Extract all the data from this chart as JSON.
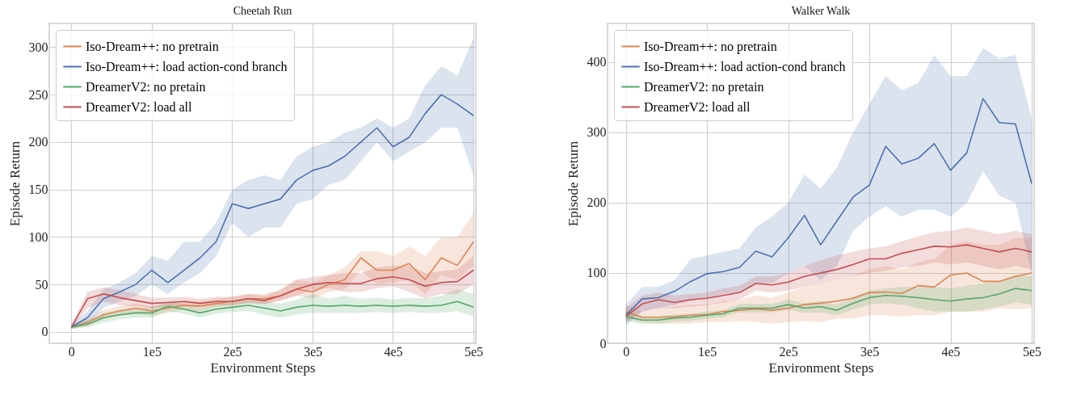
{
  "chart_data": [
    {
      "type": "line",
      "title": "Cheetah Run",
      "xlabel": "Environment Steps",
      "ylabel": "Episode Return",
      "grid": true,
      "legend": "top left",
      "x": [
        0,
        20000,
        40000,
        60000,
        80000,
        100000,
        120000,
        140000,
        160000,
        180000,
        200000,
        220000,
        240000,
        260000,
        280000,
        300000,
        320000,
        340000,
        360000,
        380000,
        400000,
        420000,
        440000,
        460000,
        480000,
        500000
      ],
      "xlim": [
        -27500,
        503000
      ],
      "ylim": [
        -12,
        325
      ],
      "xticks": [
        0,
        {
          "value": 100000,
          "label": "1e5"
        },
        {
          "value": 200000,
          "label": "2e5"
        },
        {
          "value": 300000,
          "label": "3e5"
        },
        {
          "value": 400000,
          "label": "4e5"
        },
        {
          "value": 500000,
          "label": "5e5"
        }
      ],
      "yticks": [
        0,
        50,
        100,
        150,
        200,
        250,
        300
      ],
      "series": [
        {
          "name": "Iso-Dream++: no pretrain",
          "color": "#dd8452",
          "values": [
            5,
            10,
            18,
            22,
            25,
            22,
            25,
            28,
            27,
            30,
            32,
            35,
            35,
            38,
            45,
            42,
            50,
            55,
            78,
            65,
            65,
            72,
            55,
            78,
            70,
            95
          ],
          "lower": [
            3,
            6,
            13,
            17,
            20,
            17,
            20,
            23,
            22,
            26,
            28,
            30,
            30,
            33,
            38,
            35,
            42,
            45,
            65,
            50,
            52,
            55,
            40,
            60,
            55,
            70
          ],
          "upper": [
            7,
            14,
            23,
            27,
            30,
            27,
            30,
            33,
            32,
            35,
            37,
            40,
            40,
            45,
            55,
            52,
            60,
            68,
            85,
            85,
            80,
            90,
            80,
            100,
            100,
            125
          ]
        },
        {
          "name": "Iso-Dream++: load action-cond branch",
          "color": "#4c72b0",
          "values": [
            5,
            15,
            35,
            42,
            50,
            65,
            52,
            65,
            78,
            95,
            135,
            130,
            135,
            140,
            160,
            170,
            175,
            185,
            200,
            215,
            195,
            205,
            230,
            250,
            240,
            228
          ],
          "lower": [
            3,
            8,
            25,
            32,
            38,
            50,
            40,
            52,
            62,
            80,
            115,
            100,
            110,
            110,
            135,
            140,
            155,
            160,
            180,
            200,
            180,
            190,
            200,
            215,
            215,
            165
          ],
          "upper": [
            8,
            22,
            45,
            52,
            62,
            80,
            75,
            95,
            95,
            115,
            150,
            160,
            165,
            160,
            185,
            195,
            200,
            210,
            215,
            225,
            215,
            225,
            260,
            280,
            270,
            310
          ]
        },
        {
          "name": "DreamerV2: no pretain",
          "color": "#55a868",
          "values": [
            5,
            8,
            15,
            18,
            20,
            20,
            27,
            24,
            20,
            24,
            26,
            28,
            25,
            22,
            26,
            28,
            27,
            28,
            27,
            28,
            27,
            28,
            27,
            28,
            32,
            26
          ],
          "lower": [
            3,
            5,
            10,
            13,
            15,
            15,
            22,
            19,
            15,
            19,
            21,
            22,
            18,
            15,
            18,
            20,
            20,
            20,
            20,
            21,
            20,
            21,
            20,
            20,
            22,
            16
          ],
          "upper": [
            7,
            12,
            20,
            23,
            25,
            26,
            32,
            29,
            25,
            29,
            31,
            34,
            32,
            30,
            34,
            40,
            35,
            38,
            35,
            36,
            34,
            36,
            35,
            38,
            45,
            40
          ]
        },
        {
          "name": "DreamerV2: load all",
          "color": "#c44e52",
          "values": [
            5,
            35,
            40,
            36,
            33,
            30,
            31,
            32,
            30,
            32,
            32,
            35,
            33,
            38,
            45,
            50,
            52,
            51,
            51,
            56,
            58,
            55,
            48,
            52,
            53,
            65
          ],
          "lower": [
            3,
            25,
            32,
            28,
            27,
            25,
            26,
            27,
            26,
            28,
            28,
            31,
            29,
            33,
            38,
            44,
            46,
            42,
            42,
            46,
            48,
            42,
            35,
            40,
            40,
            50
          ],
          "upper": [
            8,
            42,
            47,
            44,
            40,
            36,
            36,
            37,
            35,
            37,
            37,
            40,
            38,
            44,
            55,
            58,
            60,
            62,
            62,
            68,
            70,
            70,
            62,
            64,
            66,
            80
          ]
        }
      ]
    },
    {
      "type": "line",
      "title": "Walker Walk",
      "xlabel": "Environment Steps",
      "ylabel": "Episode Return",
      "grid": true,
      "legend": "top left",
      "x": [
        0,
        20000,
        40000,
        60000,
        80000,
        100000,
        120000,
        140000,
        160000,
        180000,
        200000,
        220000,
        240000,
        260000,
        280000,
        300000,
        320000,
        340000,
        360000,
        380000,
        400000,
        420000,
        440000,
        460000,
        480000,
        500000
      ],
      "xlim": [
        -22600,
        503000
      ],
      "ylim": [
        0,
        455
      ],
      "xticks": [
        0,
        {
          "value": 100000,
          "label": "1e5"
        },
        {
          "value": 200000,
          "label": "2e5"
        },
        {
          "value": 300000,
          "label": "3e5"
        },
        {
          "value": 400000,
          "label": "4e5"
        },
        {
          "value": 500000,
          "label": "5e5"
        }
      ],
      "yticks": [
        0,
        100,
        200,
        300,
        400
      ],
      "series": [
        {
          "name": "Iso-Dream++: no pretrain",
          "color": "#dd8452",
          "values": [
            45,
            37,
            37,
            38,
            40,
            41,
            45,
            47,
            49,
            47,
            50,
            55,
            57,
            60,
            64,
            72,
            73,
            71,
            82,
            80,
            97,
            100,
            88,
            88,
            95,
            100
          ],
          "lower": [
            35,
            30,
            28,
            28,
            28,
            30,
            30,
            32,
            30,
            28,
            30,
            32,
            30,
            35,
            35,
            40,
            40,
            38,
            40,
            40,
            45,
            45,
            45,
            50,
            48,
            50
          ],
          "upper": [
            55,
            45,
            50,
            52,
            55,
            55,
            60,
            62,
            68,
            65,
            72,
            80,
            85,
            90,
            95,
            105,
            110,
            105,
            115,
            120,
            140,
            145,
            140,
            140,
            150,
            150
          ]
        },
        {
          "name": "Iso-Dream++: load action-cond branch",
          "color": "#4c72b0",
          "values": [
            40,
            63,
            65,
            74,
            88,
            99,
            102,
            108,
            131,
            123,
            150,
            182,
            140,
            174,
            208,
            225,
            280,
            255,
            263,
            284,
            246,
            271,
            348,
            314,
            312,
            227
          ],
          "lower": [
            25,
            45,
            50,
            55,
            60,
            65,
            70,
            72,
            85,
            85,
            100,
            110,
            90,
            110,
            160,
            180,
            195,
            180,
            190,
            190,
            180,
            200,
            245,
            210,
            200,
            100
          ],
          "upper": [
            55,
            80,
            80,
            90,
            120,
            125,
            130,
            135,
            165,
            180,
            200,
            240,
            220,
            250,
            300,
            340,
            380,
            360,
            370,
            410,
            380,
            380,
            420,
            405,
            410,
            320
          ]
        },
        {
          "name": "DreamerV2: no pretain",
          "color": "#55a868",
          "values": [
            38,
            33,
            33,
            36,
            37,
            40,
            42,
            50,
            50,
            50,
            55,
            50,
            52,
            47,
            57,
            65,
            68,
            67,
            65,
            62,
            60,
            63,
            65,
            70,
            78,
            75
          ],
          "lower": [
            32,
            28,
            28,
            31,
            32,
            35,
            37,
            44,
            44,
            44,
            48,
            43,
            44,
            40,
            48,
            55,
            57,
            55,
            50,
            45,
            45,
            45,
            48,
            52,
            58,
            55
          ],
          "upper": [
            44,
            38,
            38,
            41,
            42,
            45,
            47,
            56,
            56,
            56,
            62,
            57,
            60,
            55,
            66,
            75,
            78,
            80,
            80,
            80,
            78,
            82,
            85,
            88,
            98,
            95
          ]
        },
        {
          "name": "DreamerV2: load all",
          "color": "#c44e52",
          "values": [
            38,
            56,
            62,
            58,
            62,
            64,
            68,
            72,
            85,
            83,
            87,
            95,
            100,
            105,
            112,
            120,
            120,
            128,
            133,
            138,
            137,
            140,
            135,
            130,
            135,
            130
          ],
          "lower": [
            30,
            45,
            50,
            50,
            52,
            54,
            58,
            62,
            75,
            72,
            75,
            80,
            85,
            90,
            95,
            100,
            103,
            108,
            110,
            115,
            112,
            115,
            110,
            105,
            110,
            105
          ],
          "upper": [
            50,
            68,
            72,
            68,
            70,
            72,
            78,
            82,
            95,
            95,
            100,
            110,
            118,
            125,
            130,
            135,
            138,
            145,
            152,
            158,
            160,
            165,
            160,
            155,
            160,
            155
          ]
        }
      ]
    }
  ]
}
